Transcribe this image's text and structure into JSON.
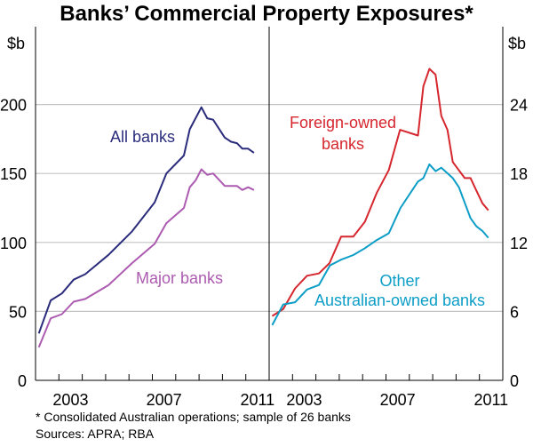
{
  "chart_data": [
    {
      "type": "line",
      "title": "Banks’ Commercial Property Exposures*",
      "ylabel": "$b",
      "ylim": [
        0,
        250
      ],
      "yticks": [
        0,
        50,
        100,
        150,
        200
      ],
      "xlim": [
        2002,
        2012
      ],
      "xtick_labels": [
        "2003",
        "2007",
        "2011"
      ],
      "grid": true,
      "series": [
        {
          "name": "All banks",
          "color": "#2b2c7c",
          "x": [
            2002.14,
            2002.65,
            2003.13,
            2003.63,
            2004.13,
            2005.12,
            2006.13,
            2007.1,
            2007.6,
            2008.35,
            2008.6,
            2009.1,
            2009.35,
            2009.6,
            2010.1,
            2010.37,
            2010.62,
            2010.85,
            2011.1,
            2011.35
          ],
          "y": [
            34,
            58,
            63,
            73,
            77,
            91,
            108,
            129,
            150,
            163,
            182,
            198,
            190,
            189,
            176,
            173,
            172,
            168,
            168,
            165
          ]
        },
        {
          "name": "Major banks",
          "color": "#ac5bb0",
          "x": [
            2002.14,
            2002.65,
            2003.13,
            2003.63,
            2004.13,
            2005.12,
            2006.13,
            2007.1,
            2007.6,
            2008.35,
            2008.6,
            2008.85,
            2009.1,
            2009.35,
            2009.6,
            2010.1,
            2010.37,
            2010.62,
            2010.85,
            2011.1,
            2011.35
          ],
          "y": [
            24,
            45,
            48,
            57,
            59,
            69,
            85,
            99,
            114,
            125,
            140,
            145,
            153,
            149,
            150,
            141,
            141,
            141,
            138,
            140,
            138
          ]
        }
      ]
    },
    {
      "type": "line",
      "ylabel": "$b",
      "ylim": [
        0,
        30
      ],
      "yticks": [
        0,
        6,
        12,
        18,
        24
      ],
      "xlim": [
        2002,
        2012
      ],
      "xtick_labels": [
        "2003",
        "2007",
        "2011"
      ],
      "grid": true,
      "series": [
        {
          "name": "Foreign-owned banks",
          "color": "#d6262e",
          "x": [
            2002.13,
            2002.6,
            2003.11,
            2003.62,
            2004.13,
            2004.58,
            2005.08,
            2005.6,
            2006.1,
            2006.6,
            2007.12,
            2007.6,
            2008.37,
            2008.6,
            2008.86,
            2009.12,
            2009.37,
            2009.63,
            2009.86,
            2010.37,
            2010.62,
            2010.87,
            2011.13,
            2011.38
          ],
          "y": [
            5.6,
            6.2,
            8.0,
            9.1,
            9.3,
            10.2,
            12.5,
            12.5,
            13.8,
            16.3,
            18.3,
            21.8,
            21.3,
            25.6,
            27.1,
            26.6,
            23.0,
            21.8,
            19.0,
            17.6,
            17.6,
            16.5,
            15.4,
            14.8
          ]
        },
        {
          "name": "Other Australian-owned banks",
          "color": "#0c9ec7",
          "x": [
            2002.13,
            2002.6,
            2003.11,
            2003.62,
            2004.13,
            2004.6,
            2005.08,
            2005.6,
            2006.1,
            2006.6,
            2007.12,
            2007.62,
            2008.37,
            2008.6,
            2008.86,
            2009.12,
            2009.37,
            2009.86,
            2010.12,
            2010.62,
            2010.87,
            2011.13,
            2011.38
          ],
          "y": [
            4.8,
            6.6,
            6.8,
            7.9,
            8.3,
            10.0,
            10.5,
            10.9,
            11.5,
            12.2,
            12.8,
            15.0,
            17.3,
            17.6,
            18.8,
            18.2,
            18.5,
            17.6,
            16.8,
            14.1,
            13.4,
            13.0,
            12.4
          ]
        }
      ]
    }
  ],
  "labels": {
    "all_banks": "All banks",
    "major_banks": "Major banks",
    "foreign_1": "Foreign-owned",
    "foreign_2": "banks",
    "other_1": "Other",
    "other_2": "Australian-owned banks"
  },
  "footnotes": {
    "note": "*   Consolidated Australian operations; sample of 26 banks",
    "sources": "Sources: APRA; RBA"
  }
}
